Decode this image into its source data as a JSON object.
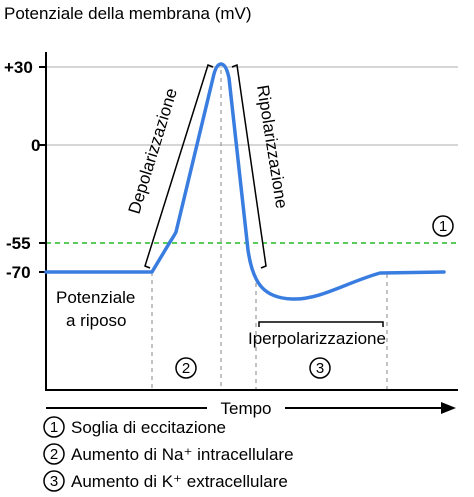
{
  "y_axis_title": "Potenziale della membrana (mV)",
  "x_axis_title": "Tempo",
  "y_ticks": [
    "+30",
    "0",
    "-55",
    "-70"
  ],
  "phases": {
    "depolarization": "Depolarizzazione",
    "repolarization": "Ripolarizzazione",
    "hyperpolarization": "Iperpolarizzazione",
    "resting_line1": "Potenziale",
    "resting_line2": "a riposo"
  },
  "markers": [
    "1",
    "2",
    "3"
  ],
  "legend": [
    {
      "num": "1",
      "label": "Soglia di eccitazione"
    },
    {
      "num": "2",
      "label": "Aumento di Na⁺ intracellulare"
    },
    {
      "num": "3",
      "label": "Aumento di K⁺ extracellulare"
    }
  ],
  "colors": {
    "trace": "#3a7de0",
    "threshold": "#22bb22",
    "gridline": "#c8c8c8",
    "guide": "#9a9a9a"
  }
}
